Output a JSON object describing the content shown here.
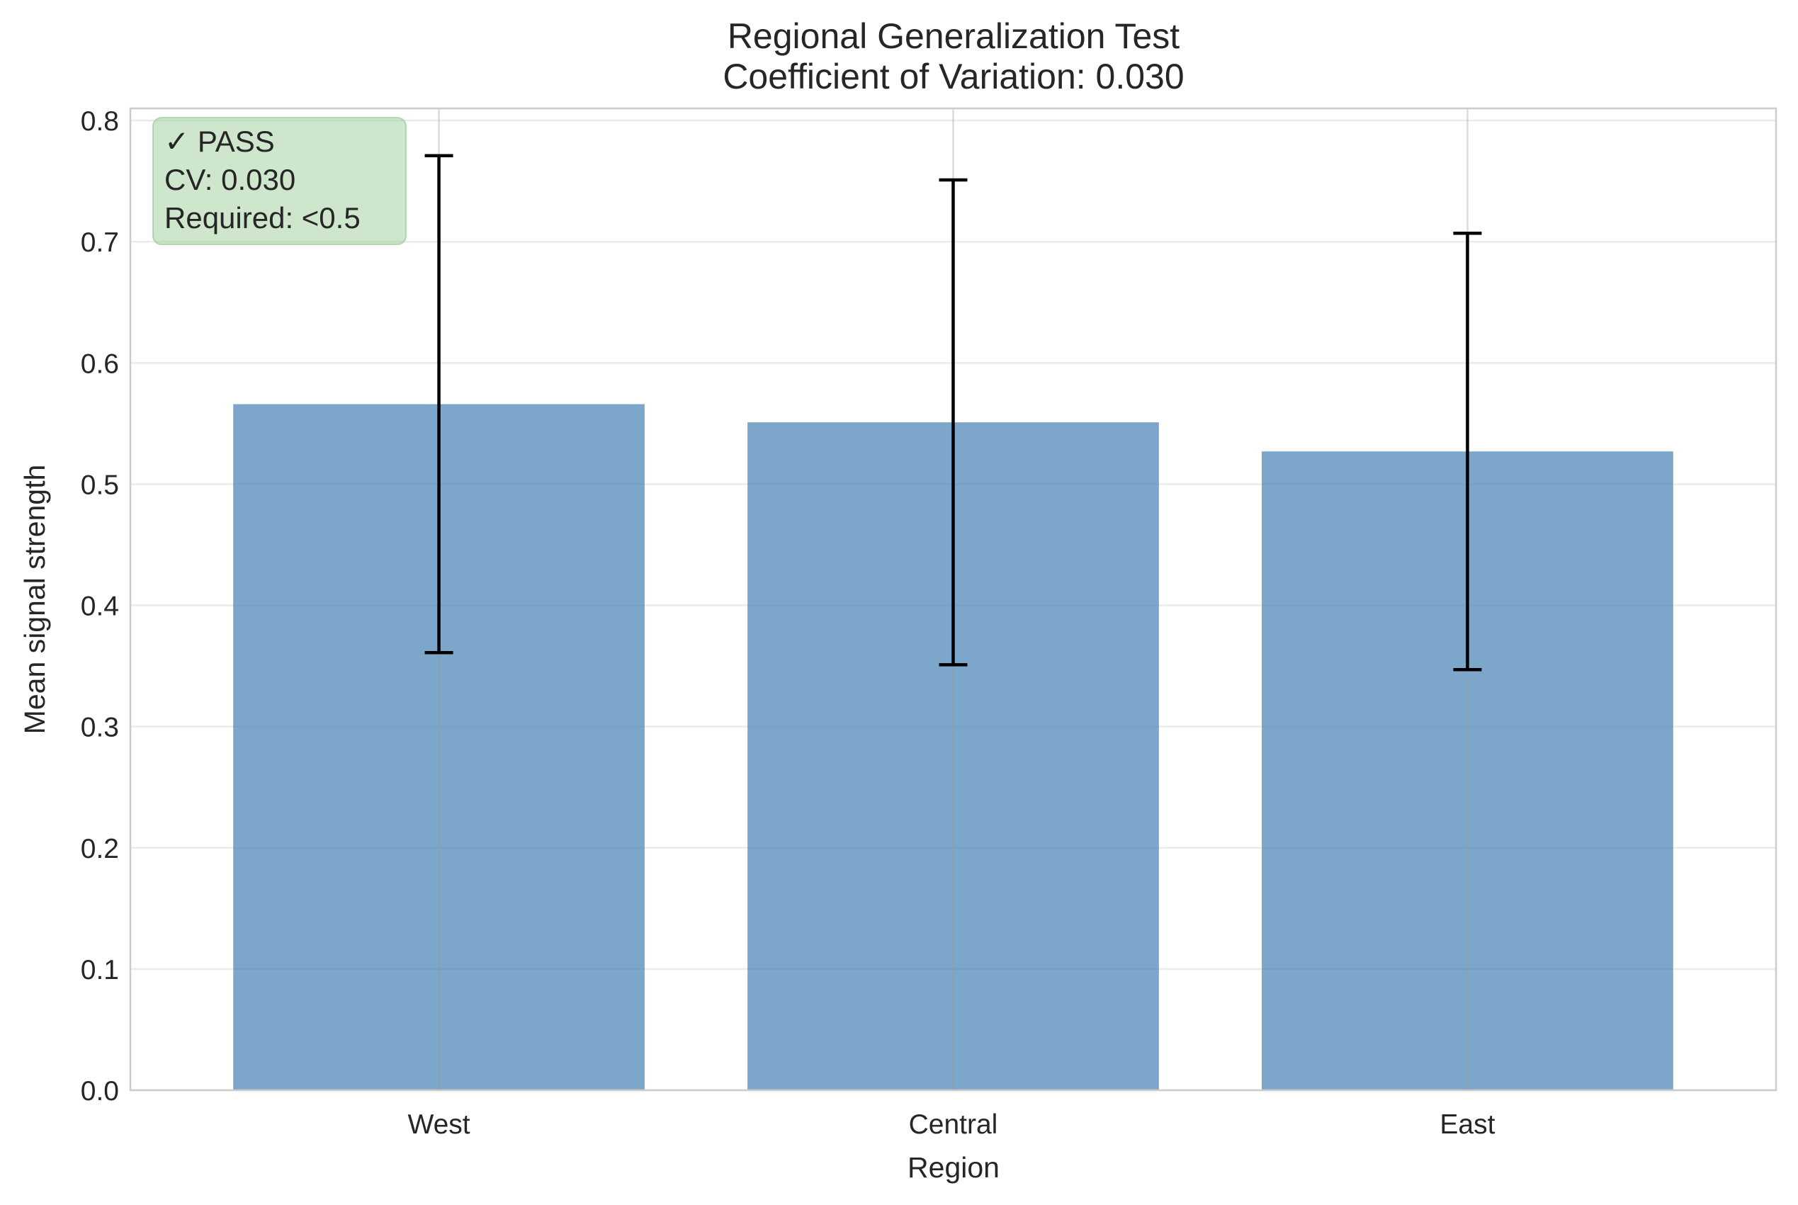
{
  "chart_data": {
    "type": "bar",
    "title": "Regional Generalization Test",
    "subtitle": "Coefficient of Variation: 0.030",
    "xlabel": "Region",
    "ylabel": "Mean signal strength",
    "categories": [
      "West",
      "Central",
      "East"
    ],
    "values": [
      0.566,
      0.551,
      0.527
    ],
    "error": [
      0.205,
      0.2,
      0.18
    ],
    "ylim": [
      0,
      0.81
    ],
    "yticks": [
      "0.0",
      "0.1",
      "0.2",
      "0.3",
      "0.4",
      "0.5",
      "0.6",
      "0.7",
      "0.8"
    ],
    "grid": true,
    "colors": {
      "bar": "#4682b4",
      "error": "#000000",
      "annotation_bg": "#90c78f"
    },
    "annotation": {
      "lines": [
        "✓ PASS",
        "CV: 0.030",
        "Required: <0.5"
      ],
      "placement": "top-left"
    }
  }
}
